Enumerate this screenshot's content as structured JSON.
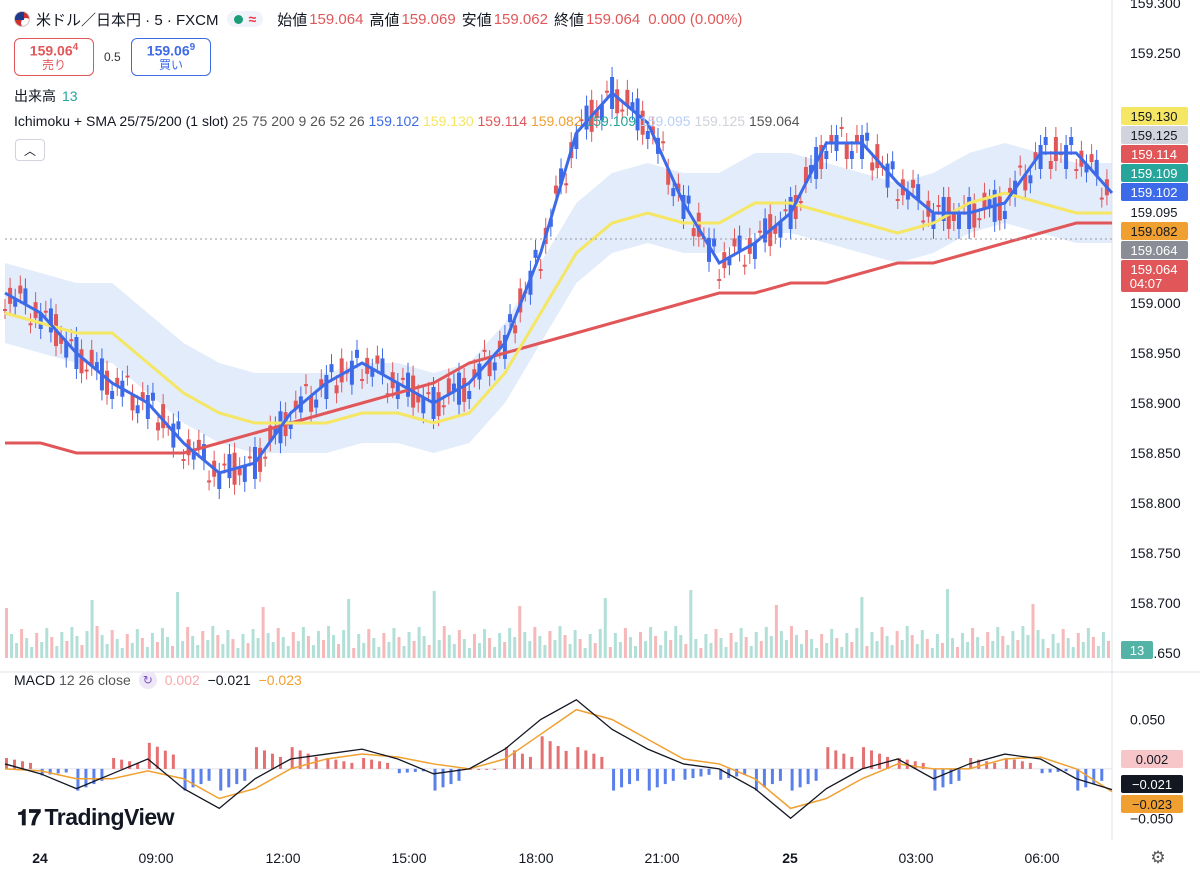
{
  "header": {
    "symbol": "米ドル／日本円 · 5 · FXCM",
    "wave": "≈",
    "ohlc": [
      {
        "k": "始値",
        "v": "159.064"
      },
      {
        "k": "高値",
        "v": "159.069"
      },
      {
        "k": "安値",
        "v": "159.062"
      },
      {
        "k": "終値",
        "v": "159.064"
      }
    ],
    "change": "0.000 (0.00%)"
  },
  "trade": {
    "sell_price": "159.06",
    "sell_sup": "4",
    "sell_label": "売り",
    "spread": "0.5",
    "buy_price": "159.06",
    "buy_sup": "9",
    "buy_label": "買い"
  },
  "volume": {
    "label": "出来高",
    "value": "13"
  },
  "indicator": {
    "name": "Ichimoku + SMA 25/75/200 (1 slot)",
    "params": "25 75 200 9 26 52 26",
    "values": [
      {
        "v": "159.102",
        "c": "#3d6ae8"
      },
      {
        "v": "159.130",
        "c": "#f5e663"
      },
      {
        "v": "159.114",
        "c": "#e15759"
      },
      {
        "v": "159.082",
        "c": "#f0a030"
      },
      {
        "v": "159.109",
        "c": "#26a69a"
      },
      {
        "v": "159.095",
        "c": "#b7cff5"
      },
      {
        "v": "159.125",
        "c": "#cfd2da"
      },
      {
        "v": "159.064",
        "c": "#555555"
      }
    ]
  },
  "macd": {
    "label": "MACD",
    "params": "12 26 close",
    "hist": "0.002",
    "macd": "−0.021",
    "signal": "−0.023"
  },
  "branding": {
    "name": "TradingView"
  },
  "chart_data": [
    {
      "type": "candlestick",
      "title": "米ドル／日本円 · 5 · FXCM",
      "ylim": [
        158.65,
        159.3
      ],
      "y_ticks": [
        "159.300",
        "159.250",
        "159.000",
        "158.950",
        "158.900",
        "158.850",
        "158.800",
        "158.750",
        "158.700",
        "158.650"
      ],
      "x_ticks": [
        "24",
        "09:00",
        "12:00",
        "15:00",
        "18:00",
        "21:00",
        "25",
        "03:00",
        "06:00"
      ],
      "price_tags": [
        {
          "text": "159.130",
          "bg": "#f5e663",
          "fg": "#131722"
        },
        {
          "text": "159.125",
          "bg": "#d1d4dc",
          "fg": "#131722"
        },
        {
          "text": "159.114",
          "bg": "#e15759",
          "fg": "#ffffff"
        },
        {
          "text": "159.109",
          "bg": "#26a69a",
          "fg": "#ffffff"
        },
        {
          "text": "159.102",
          "bg": "#3d6ae8",
          "fg": "#ffffff"
        },
        {
          "text": "159.095",
          "bg": "#ffffff",
          "fg": "#131722"
        },
        {
          "text": "159.082",
          "bg": "#f0a030",
          "fg": "#131722"
        },
        {
          "text": "159.064",
          "bg": "#8a8d96",
          "fg": "#ffffff"
        },
        {
          "text": "159.064",
          "bg": "#e15759",
          "fg": "#ffffff",
          "sub": "04:07"
        }
      ],
      "volume_tag": "13",
      "series": [
        {
          "name": "SMA 25",
          "color": "#3d6ae8"
        },
        {
          "name": "SMA 75",
          "color": "#f5e663"
        },
        {
          "name": "SMA 200",
          "color": "#e15759"
        }
      ],
      "sma25": [
        159.01,
        158.99,
        158.95,
        158.92,
        158.9,
        158.86,
        158.83,
        158.84,
        158.89,
        158.92,
        158.94,
        158.92,
        158.9,
        158.92,
        158.96,
        159.05,
        159.17,
        159.21,
        159.18,
        159.1,
        159.04,
        159.06,
        159.09,
        159.16,
        159.16,
        159.12,
        159.09,
        159.09,
        159.1,
        159.15,
        159.15,
        159.11
      ],
      "sma75": [
        158.99,
        158.98,
        158.97,
        158.97,
        158.94,
        158.91,
        158.89,
        158.88,
        158.88,
        158.88,
        158.89,
        158.89,
        158.88,
        158.89,
        158.93,
        158.99,
        159.05,
        159.08,
        159.09,
        159.08,
        159.08,
        159.1,
        159.1,
        159.09,
        159.08,
        159.07,
        159.08,
        159.1,
        159.11,
        159.1,
        159.09,
        159.09
      ],
      "sma200": [
        158.86,
        158.86,
        158.85,
        158.85,
        158.85,
        158.85,
        158.86,
        158.87,
        158.88,
        158.89,
        158.9,
        158.91,
        158.92,
        158.94,
        158.95,
        158.96,
        158.97,
        158.98,
        158.99,
        159.0,
        159.01,
        159.01,
        159.02,
        159.02,
        159.03,
        159.04,
        159.04,
        159.05,
        159.06,
        159.07,
        159.08,
        159.08
      ]
    },
    {
      "type": "line",
      "title": "MACD 12 26 close",
      "ylim": [
        -0.07,
        0.09
      ],
      "y_ticks": [
        "0.050",
        "−0.050"
      ],
      "value_tags": [
        {
          "text": "0.002",
          "bg": "#f7c6c9",
          "fg": "#131722"
        },
        {
          "text": "−0.021",
          "bg": "#131722",
          "fg": "#ffffff"
        },
        {
          "text": "−0.023",
          "bg": "#f0a030",
          "fg": "#131722"
        }
      ],
      "macd": [
        0.005,
        -0.005,
        -0.02,
        -0.005,
        0.01,
        -0.02,
        -0.04,
        -0.01,
        0.01,
        0.015,
        0.02,
        0.01,
        -0.005,
        0.0,
        0.02,
        0.05,
        0.07,
        0.04,
        0.02,
        0.005,
        0.0,
        -0.02,
        -0.05,
        -0.02,
        0.0,
        0.01,
        -0.01,
        0.005,
        0.015,
        0.01,
        -0.01,
        -0.021
      ],
      "signal": [
        0.0,
        -0.002,
        -0.01,
        -0.01,
        -0.002,
        -0.01,
        -0.03,
        -0.02,
        0.0,
        0.01,
        0.015,
        0.012,
        0.005,
        0.0,
        0.01,
        0.035,
        0.06,
        0.05,
        0.03,
        0.01,
        0.005,
        -0.01,
        -0.04,
        -0.03,
        -0.01,
        0.005,
        0.0,
        0.0,
        0.01,
        0.012,
        0.0,
        -0.023
      ]
    }
  ]
}
